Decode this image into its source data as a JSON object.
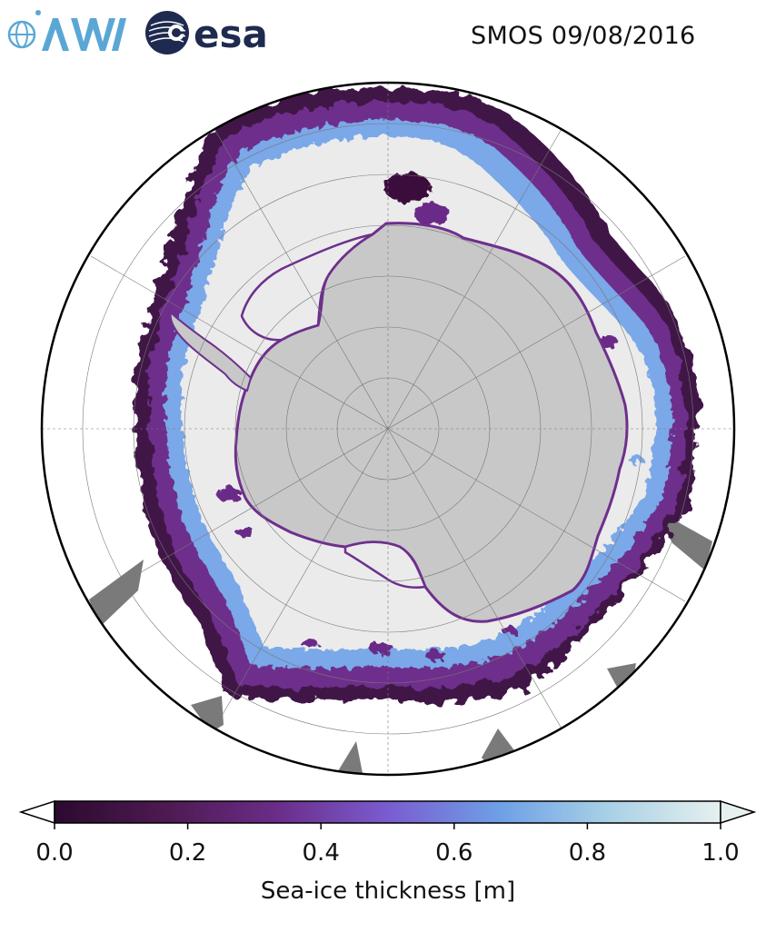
{
  "header": {
    "title": "SMOS 09/08/2016",
    "logos": [
      {
        "name": "awi-logo",
        "text": "AWI",
        "color": "#5aa7d6"
      },
      {
        "name": "esa-logo",
        "text": "esa",
        "color": "#1e2a4f"
      }
    ]
  },
  "map": {
    "projection": "south-polar-stereographic",
    "colors": {
      "land": "#c8c8c8",
      "thick_ice": "#ebebeb",
      "edge_low": "#3a0f3c",
      "edge_mid": "#6e2f8c",
      "edge_blue": "#7aa8e8",
      "no_data": "#7a7a7a",
      "grid": "#777777",
      "boundary": "#000000"
    }
  },
  "colorbar": {
    "label": "Sea-ice thickness [m]",
    "ticks": [
      "0.0",
      "0.2",
      "0.4",
      "0.6",
      "0.8",
      "1.0"
    ],
    "tick_values": [
      0.0,
      0.2,
      0.4,
      0.6,
      0.8,
      1.0
    ],
    "range": [
      0.0,
      1.0
    ],
    "extend": "both",
    "colormap": [
      "#2b0a2e",
      "#4e1a52",
      "#6a2c87",
      "#7a5ccf",
      "#6ea0e6",
      "#a8d0e6",
      "#e6f0ee"
    ]
  }
}
